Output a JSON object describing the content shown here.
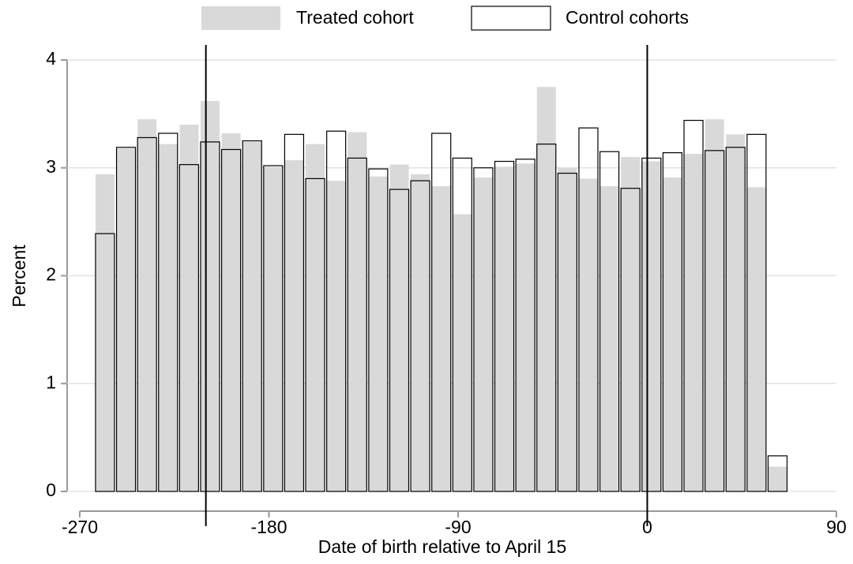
{
  "chart_data": {
    "type": "histogram",
    "xlabel": "Date of birth relative to April 15",
    "ylabel": "Percent",
    "bins": [
      -263,
      -253,
      -243,
      -233,
      -223,
      -213,
      -203,
      -193,
      -183,
      -173,
      -163,
      -153,
      -143,
      -133,
      -123,
      -113,
      -103,
      -93,
      -83,
      -73,
      -63,
      -53,
      -43,
      -33,
      -23,
      -13,
      -3,
      7,
      17,
      27,
      37,
      47,
      57,
      67
    ],
    "series": [
      {
        "name": "Treated cohort",
        "color": "#d9d9d9",
        "values": [
          2.94,
          3.18,
          3.45,
          3.22,
          3.4,
          3.62,
          3.32,
          3.24,
          3.01,
          3.07,
          3.22,
          2.88,
          3.33,
          2.92,
          3.03,
          2.94,
          2.83,
          2.57,
          2.91,
          3.01,
          3.04,
          3.75,
          3.0,
          2.9,
          2.83,
          3.1,
          3.06,
          2.91,
          3.13,
          3.45,
          3.31,
          2.82,
          0.23
        ]
      },
      {
        "name": "Control cohorts",
        "color": "#000000",
        "values": [
          2.39,
          3.19,
          3.28,
          3.32,
          3.03,
          3.24,
          3.17,
          3.25,
          3.02,
          3.31,
          2.9,
          3.34,
          3.09,
          2.99,
          2.8,
          2.88,
          3.32,
          3.09,
          3.0,
          3.06,
          3.08,
          3.22,
          2.95,
          3.37,
          3.15,
          2.81,
          3.09,
          3.14,
          3.44,
          3.16,
          3.19,
          3.31,
          0.33
        ]
      }
    ],
    "xlim": [
      -270,
      90
    ],
    "xticks": [
      -270,
      -180,
      -90,
      0,
      90
    ],
    "ylim": [
      0,
      4
    ],
    "yticks": [
      0,
      1,
      2,
      3,
      4
    ],
    "vlines": [
      -210,
      0
    ],
    "grid": true,
    "legend": "top"
  }
}
